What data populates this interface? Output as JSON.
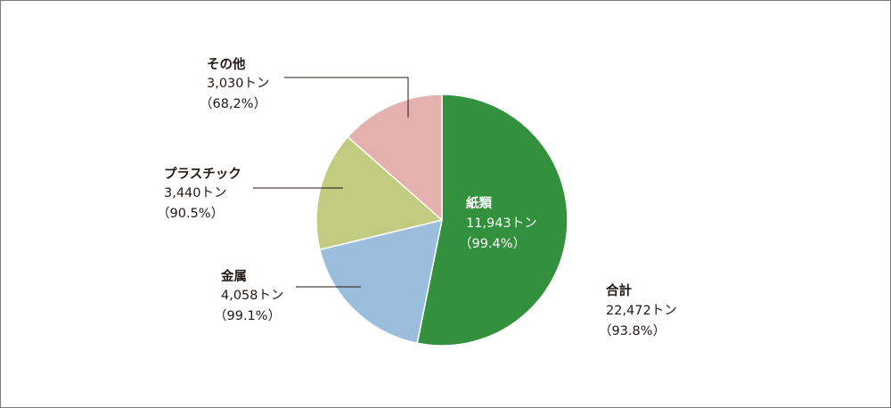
{
  "chart_data": {
    "type": "pie",
    "title": "",
    "slices": [
      {
        "name": "紙類",
        "value": 11943,
        "amount_label": "11,943トン",
        "rate_label": "（99.4%）",
        "color": "#33913e"
      },
      {
        "name": "金属",
        "value": 4058,
        "amount_label": "4,058トン",
        "rate_label": "（99.1%）",
        "color": "#9abedc"
      },
      {
        "name": "プラスチック",
        "value": 3440,
        "amount_label": "3,440トン",
        "rate_label": "（90.5%）",
        "color": "#c1cc80"
      },
      {
        "name": "その他",
        "value": 3030,
        "amount_label": "3,030トン",
        "rate_label": "（68,2%）",
        "color": "#e5b1af"
      }
    ],
    "total": {
      "name": "合計",
      "amount_label": "22,472トン",
      "rate_label": "（93.8%）"
    }
  }
}
